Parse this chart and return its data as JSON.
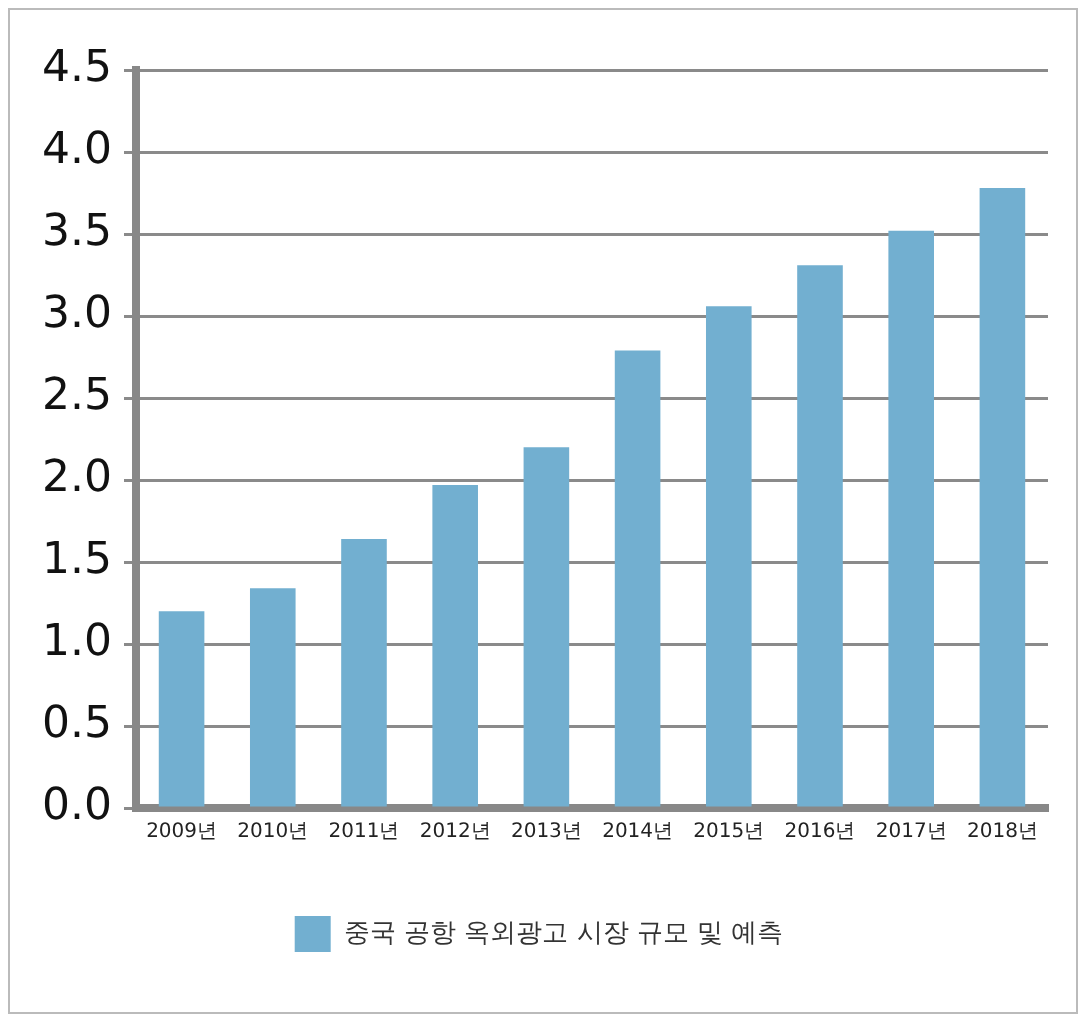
{
  "chart_data": {
    "type": "bar",
    "categories": [
      "2009년",
      "2010년",
      "2011년",
      "2012년",
      "2013년",
      "2014년",
      "2015년",
      "2016년",
      "2017년",
      "2018년"
    ],
    "series": [
      {
        "name": "중국 공항 옥외광고 시장 규모 및 예측",
        "color": "#72afd0",
        "values": [
          1.2,
          1.34,
          1.64,
          1.97,
          2.2,
          2.79,
          3.06,
          3.31,
          3.52,
          3.78
        ]
      }
    ],
    "ylim": [
      0,
      4.5
    ],
    "yticks": [
      {
        "value": 0,
        "label": "0.0"
      },
      {
        "value": 0.5,
        "label": "0.5"
      },
      {
        "value": 1,
        "label": "1.0"
      },
      {
        "value": 1.5,
        "label": "1.5"
      },
      {
        "value": 2,
        "label": "2.0"
      },
      {
        "value": 2.5,
        "label": "2.5"
      },
      {
        "value": 3,
        "label": "3.0"
      },
      {
        "value": 3.5,
        "label": "3.5"
      },
      {
        "value": 4,
        "label": "4.0"
      },
      {
        "value": 4.5,
        "label": "4.5"
      }
    ],
    "grid": "y",
    "legend": "bottom"
  }
}
